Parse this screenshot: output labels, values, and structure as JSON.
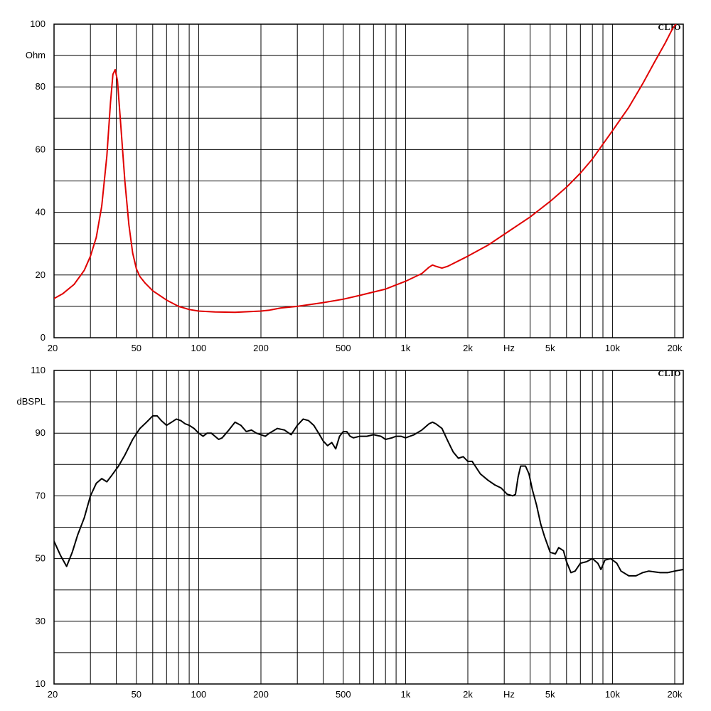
{
  "chart_data": [
    {
      "type": "line",
      "brand": "CLIO",
      "ylabel": "Ohm",
      "xlabel": "Hz",
      "x_scale": "log",
      "xlim": [
        20,
        22000
      ],
      "ylim": [
        0,
        100
      ],
      "grid": true,
      "y_ticks": [
        {
          "value": 0,
          "label": "0"
        },
        {
          "value": 20,
          "label": "20"
        },
        {
          "value": 40,
          "label": "40"
        },
        {
          "value": 60,
          "label": "60"
        },
        {
          "value": 80,
          "label": "80"
        },
        {
          "value": 100,
          "label": "100"
        }
      ],
      "x_ticks": [
        {
          "value": 20,
          "label": "20"
        },
        {
          "value": 50,
          "label": "50"
        },
        {
          "value": 100,
          "label": "100"
        },
        {
          "value": 200,
          "label": "200"
        },
        {
          "value": 500,
          "label": "500"
        },
        {
          "value": 1000,
          "label": "1k"
        },
        {
          "value": 2000,
          "label": "2k"
        },
        {
          "value": 5000,
          "label": "5k"
        },
        {
          "value": 10000,
          "label": "10k"
        },
        {
          "value": 20000,
          "label": "20k"
        }
      ],
      "series": [
        {
          "color": "#e00000",
          "points": [
            [
              20,
              12.5
            ],
            [
              22,
              14
            ],
            [
              25,
              17
            ],
            [
              28,
              21.5
            ],
            [
              30,
              26
            ],
            [
              32,
              32
            ],
            [
              34,
              42
            ],
            [
              36,
              58
            ],
            [
              37.5,
              75
            ],
            [
              38.5,
              84
            ],
            [
              39.5,
              85.5
            ],
            [
              40.5,
              82
            ],
            [
              42,
              68
            ],
            [
              44,
              50
            ],
            [
              46,
              36
            ],
            [
              48,
              27
            ],
            [
              50,
              22
            ],
            [
              52,
              19.5
            ],
            [
              55,
              17.5
            ],
            [
              60,
              15
            ],
            [
              70,
              12
            ],
            [
              80,
              10
            ],
            [
              90,
              9
            ],
            [
              100,
              8.5
            ],
            [
              120,
              8.2
            ],
            [
              150,
              8.1
            ],
            [
              200,
              8.5
            ],
            [
              220,
              8.8
            ],
            [
              250,
              9.5
            ],
            [
              300,
              10
            ],
            [
              400,
              11.2
            ],
            [
              500,
              12.3
            ],
            [
              600,
              13.5
            ],
            [
              800,
              15.5
            ],
            [
              1000,
              18
            ],
            [
              1200,
              20.5
            ],
            [
              1300,
              22.5
            ],
            [
              1350,
              23.2
            ],
            [
              1400,
              22.8
            ],
            [
              1500,
              22.2
            ],
            [
              1600,
              22.8
            ],
            [
              2000,
              26
            ],
            [
              2500,
              29.5
            ],
            [
              3000,
              33
            ],
            [
              4000,
              38.5
            ],
            [
              5000,
              43.5
            ],
            [
              6000,
              48
            ],
            [
              7000,
              52.5
            ],
            [
              8000,
              57
            ],
            [
              10000,
              66
            ],
            [
              12000,
              73.5
            ],
            [
              14000,
              81
            ],
            [
              16000,
              88
            ],
            [
              18000,
              94
            ],
            [
              19500,
              98.5
            ],
            [
              20500,
              100.5
            ]
          ]
        }
      ]
    },
    {
      "type": "line",
      "brand": "CLIO",
      "ylabel": "dBSPL",
      "xlabel": "Hz",
      "x_scale": "log",
      "xlim": [
        20,
        22000
      ],
      "ylim": [
        10,
        110
      ],
      "grid": true,
      "y_ticks": [
        {
          "value": 10,
          "label": "10"
        },
        {
          "value": 30,
          "label": "30"
        },
        {
          "value": 50,
          "label": "50"
        },
        {
          "value": 70,
          "label": "70"
        },
        {
          "value": 90,
          "label": "90"
        },
        {
          "value": 110,
          "label": "110"
        }
      ],
      "x_ticks": [
        {
          "value": 20,
          "label": "20"
        },
        {
          "value": 50,
          "label": "50"
        },
        {
          "value": 100,
          "label": "100"
        },
        {
          "value": 200,
          "label": "200"
        },
        {
          "value": 500,
          "label": "500"
        },
        {
          "value": 1000,
          "label": "1k"
        },
        {
          "value": 2000,
          "label": "2k"
        },
        {
          "value": 5000,
          "label": "5k"
        },
        {
          "value": 10000,
          "label": "10k"
        },
        {
          "value": 20000,
          "label": "20k"
        }
      ],
      "series": [
        {
          "color": "#000000",
          "points": [
            [
              20,
              55.5
            ],
            [
              21.5,
              51
            ],
            [
              23,
              47.5
            ],
            [
              24.5,
              52
            ],
            [
              26,
              57.5
            ],
            [
              28,
              63
            ],
            [
              30,
              70
            ],
            [
              32,
              74
            ],
            [
              34,
              75.5
            ],
            [
              36,
              74.5
            ],
            [
              38,
              76.5
            ],
            [
              41,
              79.5
            ],
            [
              44,
              83
            ],
            [
              48,
              88
            ],
            [
              52,
              91.5
            ],
            [
              56,
              93.5
            ],
            [
              60,
              95.5
            ],
            [
              63,
              95.5
            ],
            [
              66,
              94
            ],
            [
              70,
              92.5
            ],
            [
              74,
              93.5
            ],
            [
              78,
              94.5
            ],
            [
              82,
              94
            ],
            [
              86,
              93
            ],
            [
              90,
              92.5
            ],
            [
              95,
              91.5
            ],
            [
              100,
              90
            ],
            [
              105,
              89
            ],
            [
              110,
              90
            ],
            [
              115,
              90
            ],
            [
              120,
              89
            ],
            [
              125,
              88
            ],
            [
              130,
              88.5
            ],
            [
              140,
              91
            ],
            [
              150,
              93.5
            ],
            [
              160,
              92.5
            ],
            [
              170,
              90.5
            ],
            [
              180,
              91
            ],
            [
              190,
              90
            ],
            [
              200,
              89.5
            ],
            [
              210,
              89
            ],
            [
              220,
              90
            ],
            [
              240,
              91.5
            ],
            [
              260,
              91
            ],
            [
              280,
              89.5
            ],
            [
              300,
              92.5
            ],
            [
              320,
              94.5
            ],
            [
              340,
              94
            ],
            [
              360,
              92.5
            ],
            [
              380,
              90
            ],
            [
              400,
              87.5
            ],
            [
              420,
              86
            ],
            [
              440,
              87
            ],
            [
              460,
              85
            ],
            [
              480,
              89
            ],
            [
              500,
              90.5
            ],
            [
              520,
              90.5
            ],
            [
              540,
              89
            ],
            [
              560,
              88.5
            ],
            [
              600,
              89
            ],
            [
              650,
              89
            ],
            [
              700,
              89.5
            ],
            [
              760,
              89
            ],
            [
              800,
              88
            ],
            [
              860,
              88.5
            ],
            [
              900,
              89
            ],
            [
              950,
              89
            ],
            [
              1000,
              88.5
            ],
            [
              1100,
              89.5
            ],
            [
              1200,
              91
            ],
            [
              1300,
              93
            ],
            [
              1350,
              93.5
            ],
            [
              1400,
              93
            ],
            [
              1500,
              91.5
            ],
            [
              1600,
              87.5
            ],
            [
              1700,
              84
            ],
            [
              1800,
              82
            ],
            [
              1900,
              82.5
            ],
            [
              2000,
              81
            ],
            [
              2100,
              81
            ],
            [
              2300,
              77
            ],
            [
              2500,
              75
            ],
            [
              2700,
              73.5
            ],
            [
              2900,
              72.5
            ],
            [
              3100,
              70.5
            ],
            [
              3300,
              70
            ],
            [
              3400,
              70.5
            ],
            [
              3500,
              76
            ],
            [
              3600,
              79.5
            ],
            [
              3800,
              79.5
            ],
            [
              3950,
              77
            ],
            [
              4100,
              72
            ],
            [
              4300,
              67
            ],
            [
              4500,
              61
            ],
            [
              4700,
              57
            ],
            [
              5000,
              52
            ],
            [
              5300,
              51.5
            ],
            [
              5500,
              53.5
            ],
            [
              5800,
              52.5
            ],
            [
              6000,
              49
            ],
            [
              6300,
              45.5
            ],
            [
              6600,
              46
            ],
            [
              7000,
              48.5
            ],
            [
              7500,
              49
            ],
            [
              8000,
              50
            ],
            [
              8500,
              48.5
            ],
            [
              8800,
              46.5
            ],
            [
              9200,
              49.5
            ],
            [
              9800,
              50
            ],
            [
              10500,
              48.5
            ],
            [
              11000,
              46
            ],
            [
              12000,
              44.5
            ],
            [
              13000,
              44.5
            ],
            [
              14000,
              45.5
            ],
            [
              15000,
              46
            ],
            [
              17000,
              45.5
            ],
            [
              18500,
              45.5
            ],
            [
              20000,
              46
            ],
            [
              22000,
              46.5
            ]
          ]
        }
      ]
    }
  ]
}
